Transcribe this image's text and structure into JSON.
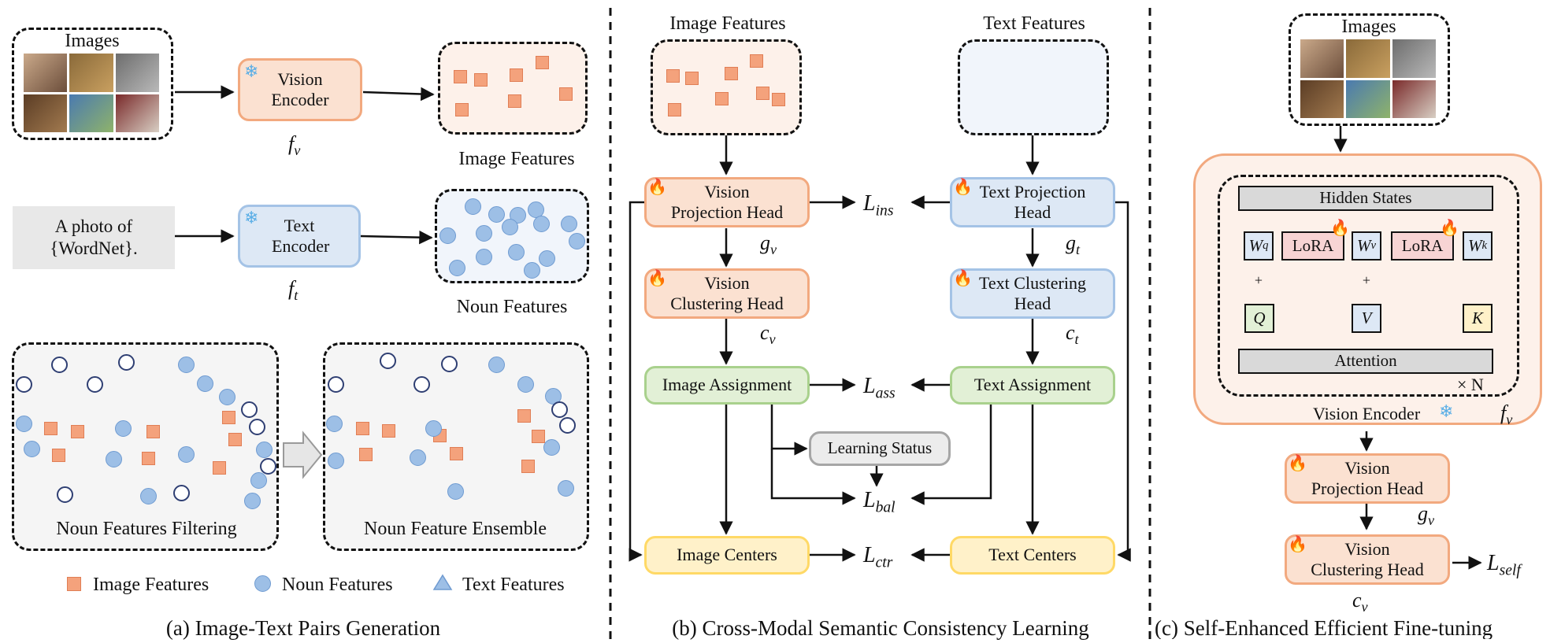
{
  "panel_a": {
    "images_label": "Images",
    "vision_encoder": "Vision Encoder",
    "f_v": "f",
    "f_v_sub": "v",
    "image_features": "Image Features",
    "prompt_line1": "A photo of",
    "prompt_line2": "{WordNet}.",
    "text_encoder": "Text Encoder",
    "f_t": "f",
    "f_t_sub": "t",
    "noun_features": "Noun Features",
    "filtering": "Noun Features Filtering",
    "ensemble": "Noun Feature Ensemble",
    "legend": [
      "Image Features",
      "Noun Features",
      "Text Features"
    ],
    "caption": "(a) Image-Text Pairs Generation"
  },
  "panel_b": {
    "image_features": "Image Features",
    "text_features": "Text Features",
    "vision_projection": "Vision Projection Head",
    "text_projection": "Text Projection Head",
    "g_v": "g",
    "g_v_sub": "v",
    "g_t": "g",
    "g_t_sub": "t",
    "vision_clustering": "Vision Clustering Head",
    "text_clustering": "Text Clustering Head",
    "c_v": "c",
    "c_v_sub": "v",
    "c_t": "c",
    "c_t_sub": "t",
    "image_assignment": "Image Assignment",
    "text_assignment": "Text Assignment",
    "learning_status": "Learning Status",
    "image_centers": "Image Centers",
    "text_centers": "Text Centers",
    "L": "L",
    "L_ins_sub": "ins",
    "L_ass_sub": "ass",
    "L_bal_sub": "bal",
    "L_ctr_sub": "ctr",
    "caption": "(b) Cross-Modal Semantic Consistency Learning"
  },
  "panel_c": {
    "images_label": "Images",
    "hidden_states": "Hidden States",
    "W": "W",
    "wq_sub": "q",
    "wv_sub": "v",
    "wk_sub": "k",
    "lora": "LoRA",
    "plus": "+",
    "q": "Q",
    "v": "V",
    "k": "K",
    "attention": "Attention",
    "times_n": "× N",
    "vision_encoder": "Vision Encoder",
    "f_v": "f",
    "f_v_sub": "v",
    "vision_projection": "Vision Projection Head",
    "g_v": "g",
    "g_v_sub": "v",
    "vision_clustering": "Vision Clustering Head",
    "c_v": "c",
    "c_v_sub": "v",
    "L": "L",
    "L_self_sub": "self",
    "caption": "(c) Self-Enhanced Efficient Fine-tuning"
  },
  "colors": {
    "orange_fill": "#fbe1d1",
    "orange_border": "#f2a97f",
    "blue_fill": "#dde8f5",
    "blue_border": "#a4c3e6",
    "green_fill": "#e2f0d6",
    "yellow_fill": "#fff1c9",
    "lora_fill": "#f7d4d4",
    "arrow_red": "#c00000"
  },
  "icons": [
    "snowflake-icon",
    "fire-icon"
  ]
}
